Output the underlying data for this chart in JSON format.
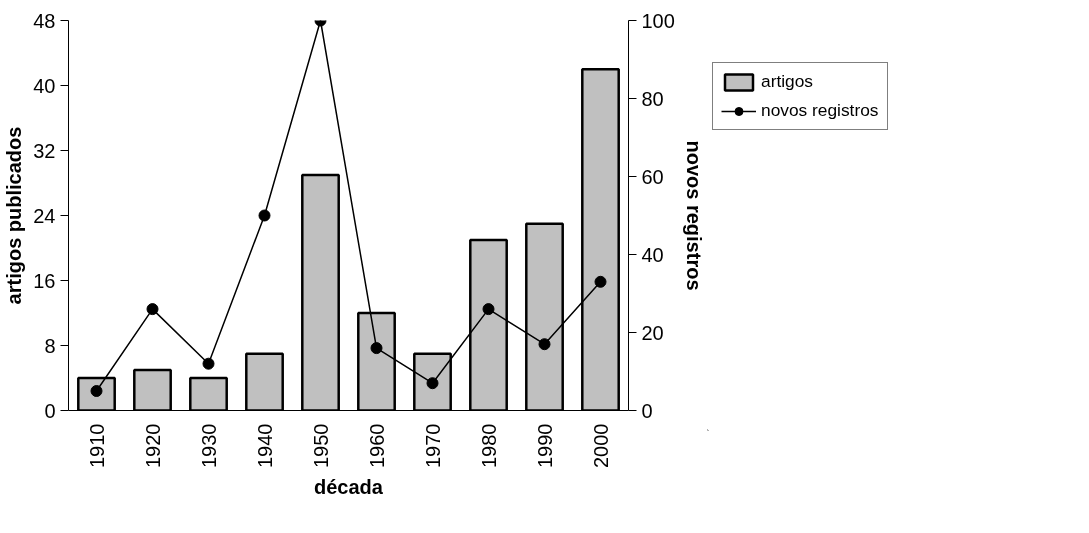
{
  "chart_data": {
    "type": "bar",
    "xlabel": "década",
    "ylabel": "artigos publicados",
    "y2label": "novos registros",
    "categories": [
      "1910",
      "1920",
      "1930",
      "1940",
      "1950",
      "1960",
      "1970",
      "1980",
      "1990",
      "2000"
    ],
    "series": [
      {
        "name": "artigos",
        "color": "#c0c0c0",
        "values": [
          4,
          5,
          4,
          7,
          29,
          12,
          7,
          21,
          23,
          42
        ]
      },
      {
        "name": "novos registros",
        "type": "line",
        "axis": "y2",
        "color": "#000000",
        "marker": "circle",
        "values": [
          5,
          26,
          12,
          50,
          100,
          16,
          7,
          26,
          17,
          33
        ]
      }
    ],
    "ylim": [
      0,
      48
    ],
    "yticks": [
      0,
      8,
      16,
      24,
      32,
      40,
      48
    ],
    "y2lim": [
      0,
      100
    ],
    "y2ticks": [
      0,
      20,
      40,
      60,
      80,
      100
    ],
    "grid": false,
    "legend": "right"
  }
}
